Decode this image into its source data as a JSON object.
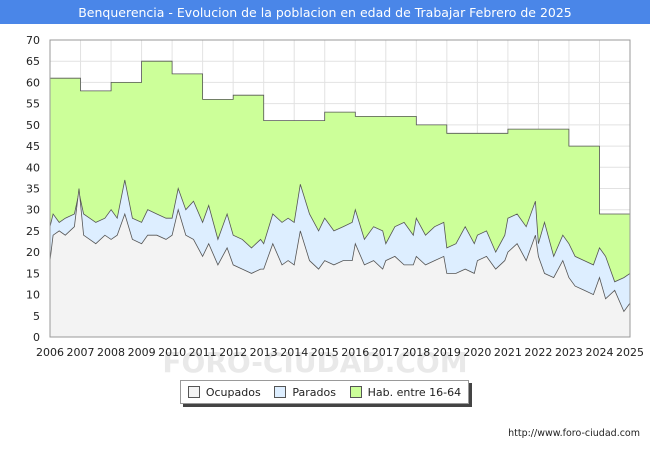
{
  "chart_data": {
    "type": "area",
    "title": "Benquerencia - Evolucion de la poblacion en edad de Trabajar Febrero de 2025",
    "xlabel": "",
    "ylabel": "",
    "ylim": [
      0,
      70
    ],
    "xlim": [
      2006,
      2025
    ],
    "yticks": [
      "0",
      "5",
      "10",
      "15",
      "20",
      "25",
      "30",
      "35",
      "40",
      "45",
      "50",
      "55",
      "60",
      "65",
      "70"
    ],
    "xticks": [
      "2006",
      "2007",
      "2008",
      "2009",
      "2010",
      "2011",
      "2012",
      "2013",
      "2014",
      "2015",
      "2016",
      "2017",
      "2018",
      "2019",
      "2020",
      "2021",
      "2022",
      "2023",
      "2024",
      "2025"
    ],
    "grid": true,
    "legend_position": "bottom",
    "watermark": "FORO-CIUDAD.COM",
    "source": "http://www.foro-ciudad.com",
    "series": [
      {
        "name": "Hab. entre 16-64",
        "color": "#ccff99",
        "step": true,
        "x": [
          2006,
          2007,
          2008,
          2009,
          2010,
          2011,
          2012,
          2013,
          2014,
          2015,
          2016,
          2017,
          2018,
          2019,
          2020,
          2021,
          2022,
          2023,
          2024
        ],
        "values": [
          61,
          58,
          60,
          65,
          62,
          56,
          57,
          51,
          51,
          53,
          52,
          52,
          50,
          48,
          48,
          49,
          49,
          45,
          29
        ]
      },
      {
        "name": "Parados",
        "color": "#ddeeff",
        "x": [
          2006.0,
          2006.1,
          2006.3,
          2006.5,
          2006.8,
          2006.95,
          2007.1,
          2007.3,
          2007.5,
          2007.8,
          2008.0,
          2008.2,
          2008.45,
          2008.7,
          2009.0,
          2009.2,
          2009.5,
          2009.8,
          2010.0,
          2010.2,
          2010.45,
          2010.7,
          2011.0,
          2011.2,
          2011.5,
          2011.8,
          2012.0,
          2012.3,
          2012.6,
          2012.9,
          2013.0,
          2013.3,
          2013.6,
          2013.8,
          2014.0,
          2014.2,
          2014.5,
          2014.8,
          2015.0,
          2015.3,
          2015.6,
          2015.9,
          2016.0,
          2016.3,
          2016.6,
          2016.9,
          2017.0,
          2017.3,
          2017.6,
          2017.9,
          2018.0,
          2018.3,
          2018.6,
          2018.9,
          2019.0,
          2019.3,
          2019.6,
          2019.9,
          2020.0,
          2020.3,
          2020.6,
          2020.9,
          2021.0,
          2021.3,
          2021.6,
          2021.9,
          2022.0,
          2022.2,
          2022.5,
          2022.8,
          2023.0,
          2023.2,
          2023.5,
          2023.8,
          2024.0,
          2024.2,
          2024.5,
          2024.8,
          2025.0
        ],
        "values": [
          26,
          29,
          27,
          28,
          29,
          34,
          29,
          28,
          27,
          28,
          30,
          28,
          37,
          28,
          27,
          30,
          29,
          28,
          28,
          35,
          30,
          32,
          27,
          31,
          23,
          29,
          24,
          23,
          21,
          23,
          22,
          29,
          27,
          28,
          27,
          36,
          29,
          25,
          28,
          25,
          26,
          27,
          30,
          23,
          26,
          25,
          22,
          26,
          27,
          24,
          28,
          24,
          26,
          27,
          21,
          22,
          26,
          22,
          24,
          25,
          20,
          24,
          28,
          29,
          26,
          32,
          22,
          27,
          19,
          24,
          22,
          19,
          18,
          17,
          21,
          19,
          13,
          14,
          15
        ]
      },
      {
        "name": "Ocupados",
        "color": "#f3f3f3",
        "x": [
          2006.0,
          2006.1,
          2006.3,
          2006.5,
          2006.8,
          2006.95,
          2007.1,
          2007.3,
          2007.5,
          2007.8,
          2008.0,
          2008.2,
          2008.45,
          2008.7,
          2009.0,
          2009.2,
          2009.5,
          2009.8,
          2010.0,
          2010.2,
          2010.45,
          2010.7,
          2011.0,
          2011.2,
          2011.5,
          2011.8,
          2012.0,
          2012.3,
          2012.6,
          2012.9,
          2013.0,
          2013.3,
          2013.6,
          2013.8,
          2014.0,
          2014.2,
          2014.5,
          2014.8,
          2015.0,
          2015.3,
          2015.6,
          2015.9,
          2016.0,
          2016.3,
          2016.6,
          2016.9,
          2017.0,
          2017.3,
          2017.6,
          2017.9,
          2018.0,
          2018.3,
          2018.6,
          2018.9,
          2019.0,
          2019.3,
          2019.6,
          2019.9,
          2020.0,
          2020.3,
          2020.6,
          2020.9,
          2021.0,
          2021.3,
          2021.6,
          2021.9,
          2022.0,
          2022.2,
          2022.5,
          2022.8,
          2023.0,
          2023.2,
          2023.5,
          2023.8,
          2024.0,
          2024.2,
          2024.5,
          2024.8,
          2025.0
        ],
        "values": [
          18,
          24,
          25,
          24,
          26,
          35,
          24,
          23,
          22,
          24,
          23,
          24,
          29,
          23,
          22,
          24,
          24,
          23,
          24,
          30,
          24,
          23,
          19,
          22,
          17,
          21,
          17,
          16,
          15,
          16,
          16,
          22,
          17,
          18,
          17,
          25,
          18,
          16,
          18,
          17,
          18,
          18,
          22,
          17,
          18,
          16,
          18,
          19,
          17,
          17,
          19,
          17,
          18,
          19,
          15,
          15,
          16,
          15,
          18,
          19,
          16,
          18,
          20,
          22,
          18,
          24,
          19,
          15,
          14,
          18,
          14,
          12,
          11,
          10,
          14,
          9,
          11,
          6,
          8
        ]
      }
    ]
  }
}
